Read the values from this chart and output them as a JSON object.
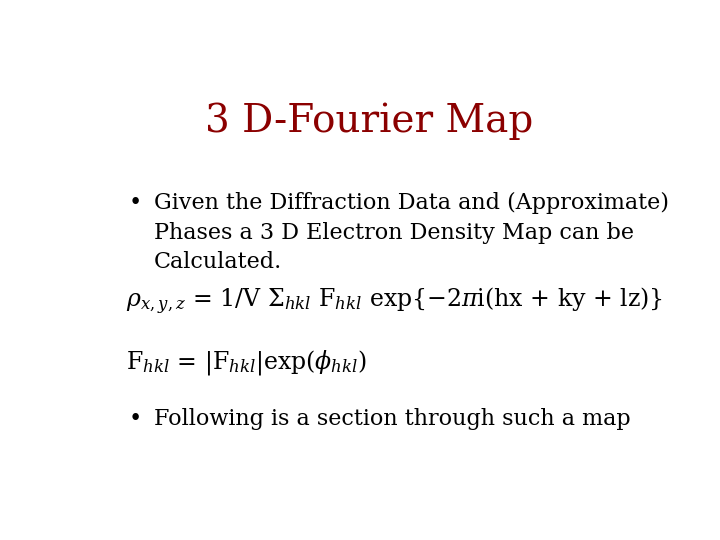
{
  "title": "3 D-Fourier Map",
  "title_color": "#8b0000",
  "title_fontsize": 28,
  "bg_color": "#ffffff",
  "text_color": "#000000",
  "bullet1_line1": "Given the Diffraction Data and (Approximate)",
  "bullet1_line2": "Phases a 3 D Electron Density Map can be",
  "bullet1_line3": "Calculated.",
  "bullet2": "Following is a section through such a map",
  "body_fontsize": 16,
  "formula_fontsize": 17
}
